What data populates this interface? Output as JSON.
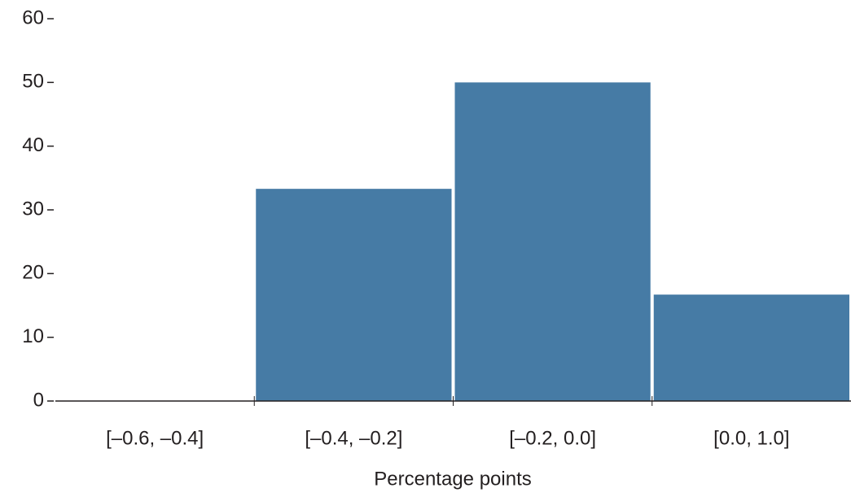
{
  "chart_data": {
    "type": "bar",
    "categories": [
      "[–0.6, –0.4]",
      "[–0.4, –0.2]",
      "[–0.2, 0.0]",
      "[0.0, 1.0]"
    ],
    "values": [
      0,
      33.3,
      50,
      16.7
    ],
    "color": "#467ba5",
    "x_label": "Percentage points",
    "ylim": [
      0,
      60
    ],
    "yticks": [
      0,
      10,
      20,
      30,
      40,
      50,
      60
    ]
  }
}
